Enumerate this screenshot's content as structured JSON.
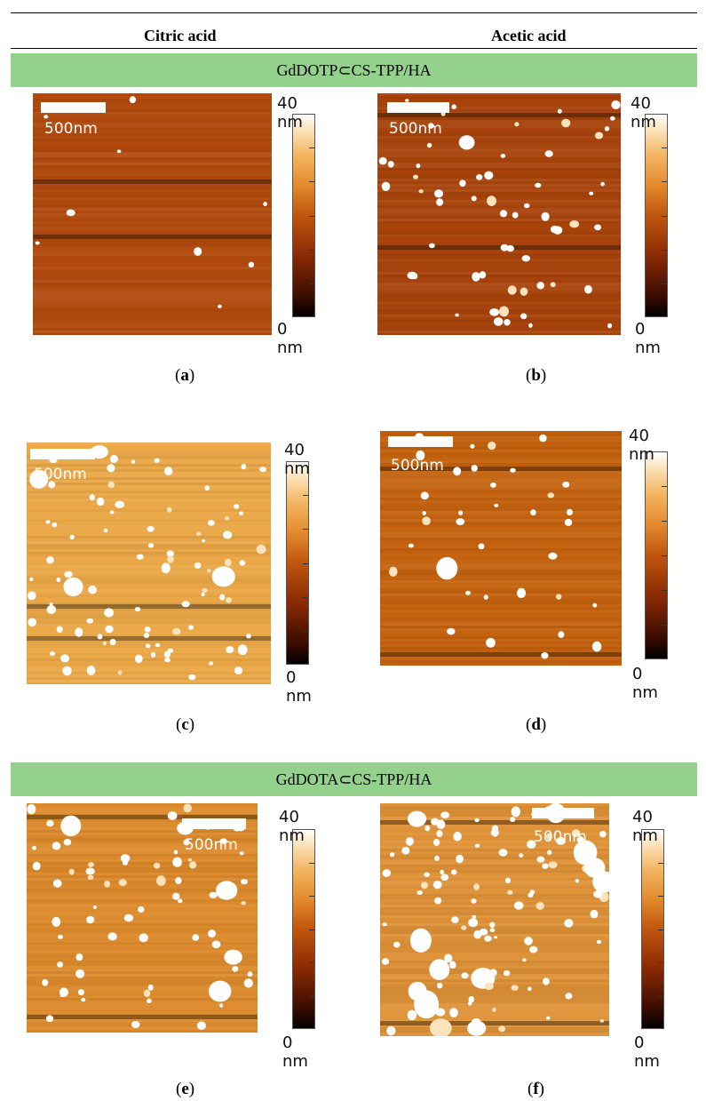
{
  "columns": {
    "left": "Citric acid",
    "right": "Acetic acid"
  },
  "sections": [
    {
      "title": "GdDOTP⊂CS-TPP/HA"
    },
    {
      "title": "GdDOTA⊂CS-TPP/HA"
    }
  ],
  "panels": [
    {
      "id": "a",
      "letter": "a",
      "scale_label": "500nm",
      "cbar_max": "40 nm",
      "cbar_min": "0 nm",
      "base_color": "#b24a0e",
      "particle_count": 9
    },
    {
      "id": "b",
      "letter": "b",
      "scale_label": "500nm",
      "cbar_max": "40 nm",
      "cbar_min": "0 nm",
      "base_color": "#a8430c",
      "particle_count": 60
    },
    {
      "id": "c",
      "letter": "c",
      "scale_label": "500nm",
      "cbar_max": "40 nm",
      "cbar_min": "0 nm",
      "base_color": "#eaa748",
      "particle_count": 90
    },
    {
      "id": "d",
      "letter": "d",
      "scale_label": "500nm",
      "cbar_max": "40 nm",
      "cbar_min": "0 nm",
      "base_color": "#c4620f",
      "particle_count": 35
    },
    {
      "id": "e",
      "letter": "e",
      "scale_label": "500nm",
      "cbar_max": "40 nm",
      "cbar_min": "0 nm",
      "base_color": "#dc8a2c",
      "particle_count": 70
    },
    {
      "id": "f",
      "letter": "f",
      "scale_label": "500nm",
      "cbar_max": "40 nm",
      "cbar_min": "0 nm",
      "base_color": "#de9238",
      "particle_count": 110
    }
  ],
  "colors": {
    "section_band": "#93d18c"
  }
}
